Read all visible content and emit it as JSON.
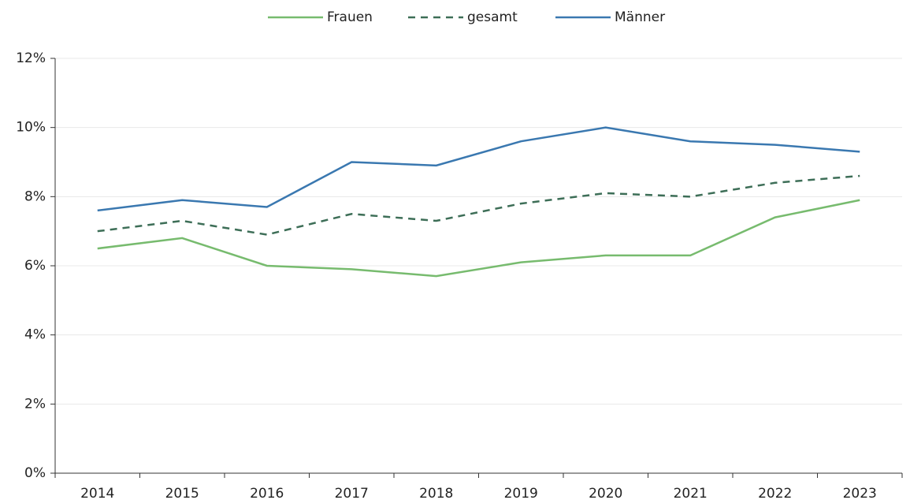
{
  "chart_data": {
    "type": "line",
    "categories": [
      "2014",
      "2015",
      "2016",
      "2017",
      "2018",
      "2019",
      "2020",
      "2021",
      "2022",
      "2023"
    ],
    "series": [
      {
        "name": "Frauen",
        "color": "#77bb6e",
        "dashed": false,
        "values": [
          6.5,
          6.8,
          6.0,
          5.9,
          5.7,
          6.1,
          6.3,
          6.3,
          7.4,
          7.9
        ]
      },
      {
        "name": "gesamt",
        "color": "#3d6e57",
        "dashed": true,
        "values": [
          7.0,
          7.3,
          6.9,
          7.5,
          7.3,
          7.8,
          8.1,
          8.0,
          8.4,
          8.6
        ]
      },
      {
        "name": "Männer",
        "color": "#3a78b0",
        "dashed": false,
        "values": [
          7.6,
          7.9,
          7.7,
          9.0,
          8.9,
          9.6,
          10.0,
          9.6,
          9.5,
          9.3
        ]
      }
    ],
    "ylim": [
      0,
      12
    ],
    "yticks": [
      {
        "value": 0,
        "label": "0%"
      },
      {
        "value": 2,
        "label": "2%"
      },
      {
        "value": 4,
        "label": "4%"
      },
      {
        "value": 6,
        "label": "6%"
      },
      {
        "value": 8,
        "label": "8%"
      },
      {
        "value": 10,
        "label": "10%"
      },
      {
        "value": 12,
        "label": "12%"
      }
    ],
    "grid": true,
    "legend": "top"
  }
}
